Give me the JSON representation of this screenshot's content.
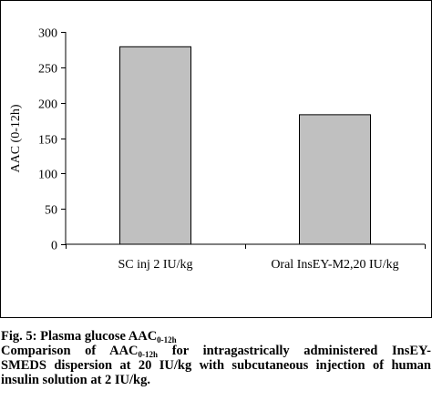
{
  "chart_data": {
    "type": "bar",
    "categories": [
      "SC inj 2 IU/kg",
      "Oral InsEY-M2,20 IU/kg"
    ],
    "values": [
      279,
      183
    ],
    "ylabel": "AAC (0-12h)",
    "ylim": [
      0,
      300
    ],
    "yticks": [
      0,
      50,
      100,
      150,
      200,
      250,
      300
    ],
    "grid": false,
    "legend": "none",
    "bar_color": "#c0c0c0",
    "bar_edge_color": "#000000"
  },
  "caption": {
    "line1_prefix": "Fig. 5: Plasma glucose AAC",
    "line1_sub": "0-12h",
    "line2_prefix": "Comparison of AAC",
    "line2_sub": "0-12h",
    "line2_suffix": " for intragastrically administered InsEY-",
    "line3": "SMEDS dispersion at 20 IU/kg with subcutaneous injection of human",
    "line4": "insulin solution at 2 IU/kg."
  }
}
